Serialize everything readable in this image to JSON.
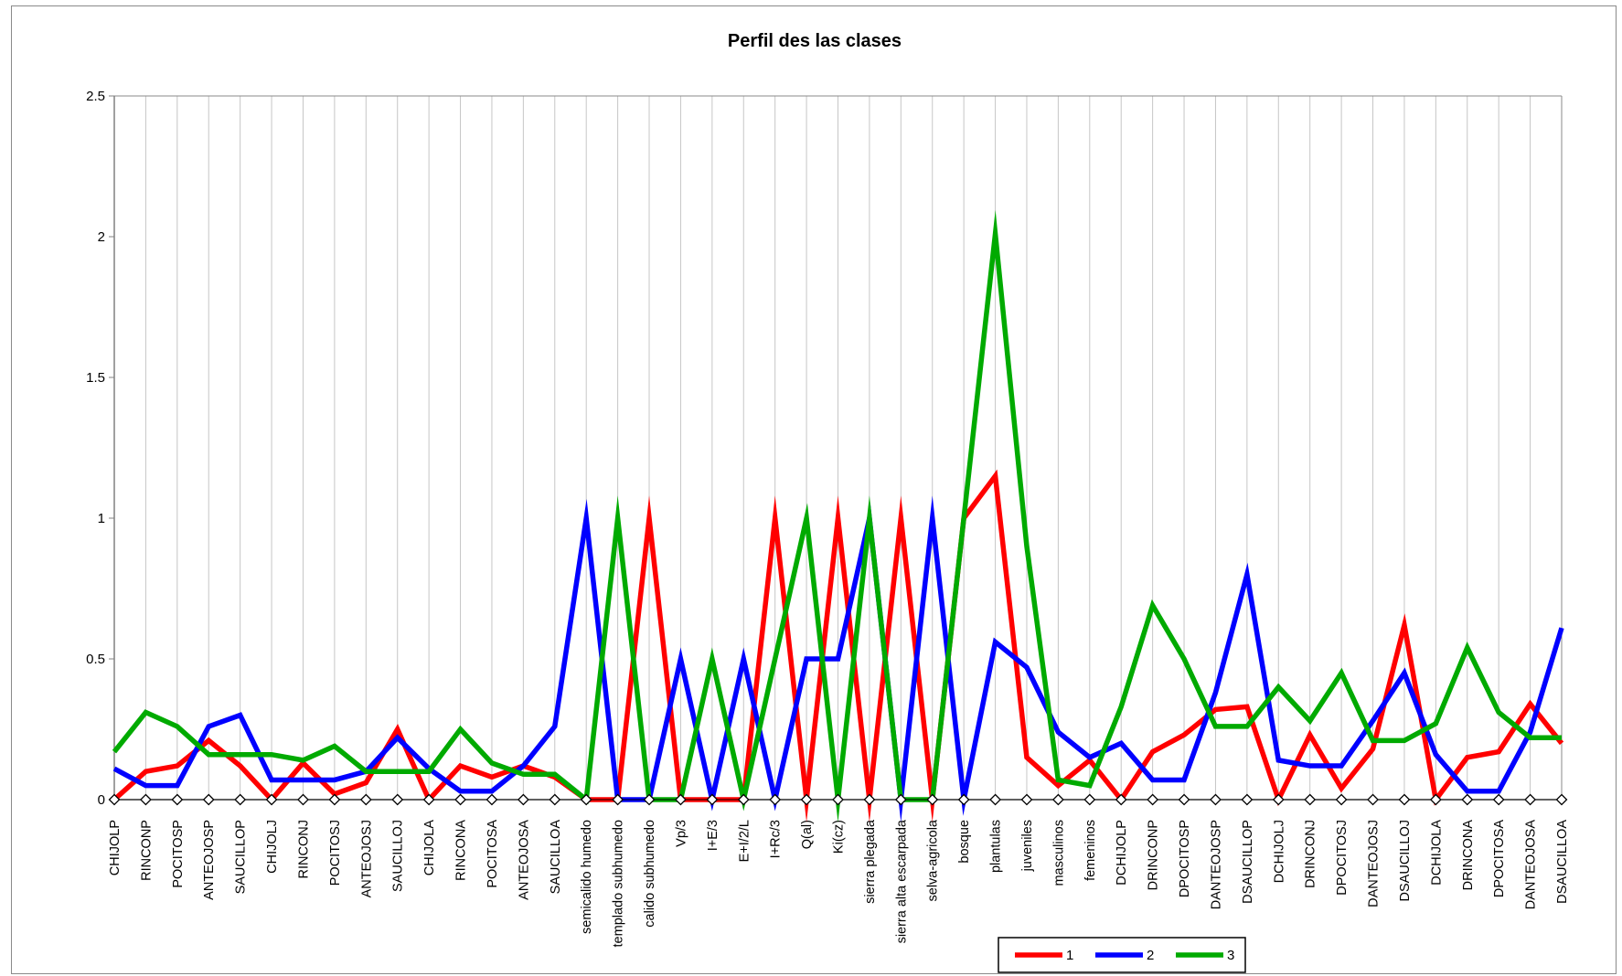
{
  "chart_data": {
    "type": "line",
    "title": "Perfil des las clases",
    "ylim": [
      0,
      2.5
    ],
    "yticks": [
      "0",
      "0.5",
      "1",
      "1.5",
      "2",
      "2.5"
    ],
    "grid": "vertical",
    "legend_position": "bottom",
    "categories": [
      "CHIJOLP",
      "RINCONP",
      "POCITOSP",
      "ANTEOJOSP",
      "SAUCILLOP",
      "CHIJOLJ",
      "RINCONJ",
      "POCITOSJ",
      "ANTEOJOSJ",
      "SAUCILLOJ",
      "CHIJOLA",
      "RINCONA",
      "POCITOSA",
      "ANTEOJOSA",
      "SAUCILLOA",
      "semicalido humedo",
      "templado subhumedo",
      "calido subhumedo",
      "Vp/3",
      "I+E/3",
      "E+I/2/L",
      "I+Rc/3",
      "Q(al)",
      "Ki(cz)",
      "sierra plegada",
      "sierra alta escarpada",
      "selva-agricola",
      "bosque",
      "plantulas",
      "juveniles",
      "masculinos",
      "femeninos",
      "DCHIJOLP",
      "DRINCONP",
      "DPOCITOSP",
      "DANTEOJOSP",
      "DSAUCILLOP",
      "DCHIJOLJ",
      "DRINCONJ",
      "DPOCITOSJ",
      "DANTEOJOSJ",
      "DSAUCILLOJ",
      "DCHIJOLA",
      "DRINCONA",
      "DPOCITOSA",
      "DANTEOJOSA",
      "DSAUCILLOA"
    ],
    "series": [
      {
        "name": "1",
        "color": "#ff0000",
        "values": [
          0,
          0.1,
          0.12,
          0.21,
          0.12,
          0,
          0.13,
          0.02,
          0.06,
          0.25,
          0,
          0.12,
          0.08,
          0.12,
          0.08,
          0,
          0,
          1,
          0,
          0,
          0,
          1,
          0,
          1,
          0,
          1,
          0,
          1,
          1.15,
          0.15,
          0.05,
          0.14,
          0,
          0.17,
          0.23,
          0.32,
          0.33,
          0,
          0.23,
          0.04,
          0.18,
          0.62,
          0,
          0.15,
          0.17,
          0.34,
          0.2
        ]
      },
      {
        "name": "2",
        "color": "#0000ff",
        "values": [
          0.11,
          0.05,
          0.05,
          0.26,
          0.3,
          0.07,
          0.07,
          0.07,
          0.1,
          0.22,
          0.11,
          0.03,
          0.03,
          0.12,
          0.26,
          1,
          0,
          0,
          0.5,
          0,
          0.5,
          0,
          0.5,
          0.5,
          1,
          0,
          1,
          0,
          0.56,
          0.47,
          0.24,
          0.15,
          0.2,
          0.07,
          0.07,
          0.38,
          0.8,
          0.14,
          0.12,
          0.12,
          0.28,
          0.45,
          0.16,
          0.03,
          0.03,
          0.24,
          0.61
        ]
      },
      {
        "name": "3",
        "color": "#00aa00",
        "values": [
          0.17,
          0.31,
          0.26,
          0.16,
          0.16,
          0.16,
          0.14,
          0.19,
          0.1,
          0.1,
          0.1,
          0.25,
          0.13,
          0.09,
          0.09,
          0,
          1,
          0,
          0,
          0.5,
          0,
          0.5,
          1,
          0,
          1,
          0,
          0,
          1,
          2.01,
          0.9,
          0.07,
          0.05,
          0.33,
          0.69,
          0.5,
          0.26,
          0.26,
          0.4,
          0.28,
          0.45,
          0.21,
          0.21,
          0.27,
          0.54,
          0.31,
          0.22,
          0.22
        ]
      },
      {
        "name": "",
        "color": "#000000",
        "marker": "diamond",
        "values": [
          0,
          0,
          0,
          0,
          0,
          0,
          0,
          0,
          0,
          0,
          0,
          0,
          0,
          0,
          0,
          0,
          0,
          0,
          0,
          0,
          0,
          0,
          0,
          0,
          0,
          0,
          0,
          0,
          0,
          0,
          0,
          0,
          0,
          0,
          0,
          0,
          0,
          0,
          0,
          0,
          0,
          0,
          0,
          0,
          0,
          0,
          0
        ]
      }
    ],
    "legend": [
      "1",
      "2",
      "3"
    ]
  }
}
